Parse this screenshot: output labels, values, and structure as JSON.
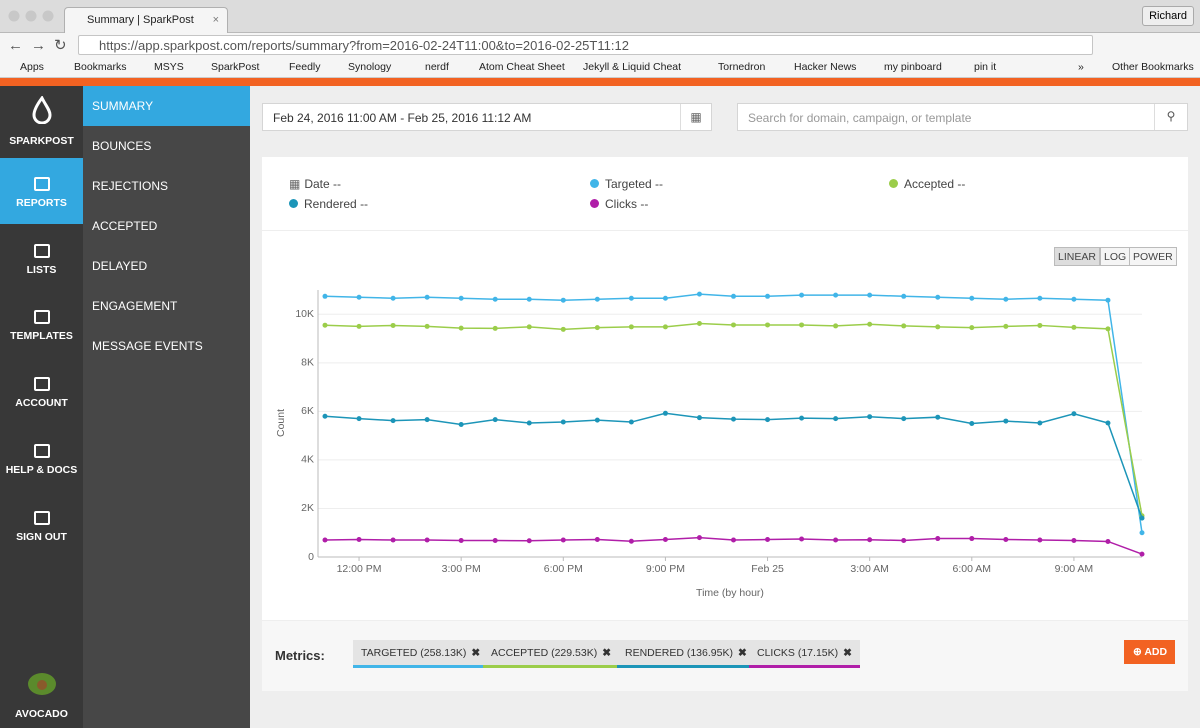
{
  "browser": {
    "tab_title": "Summary | SparkPost",
    "user": "Richard",
    "url": "https://app.sparkpost.com/reports/summary?from=2016-02-24T11:00&to=2016-02-25T11:12",
    "bookmarks": [
      "Apps",
      "Bookmarks",
      "MSYS",
      "SparkPost",
      "Feedly",
      "Synology",
      "nerdf",
      "Atom Cheat Sheet",
      "Jekyll & Liquid Cheat",
      "Tornedron",
      "Hacker News",
      "my pinboard",
      "pin it"
    ],
    "more": "»",
    "other_bookmarks": "Other Bookmarks"
  },
  "sidebar": {
    "brand": "SPARKPOST",
    "nav": [
      "REPORTS",
      "LISTS",
      "TEMPLATES",
      "ACCOUNT",
      "HELP & DOCS",
      "SIGN OUT"
    ],
    "footer": "AVOCADO"
  },
  "submenu": [
    "SUMMARY",
    "BOUNCES",
    "REJECTIONS",
    "ACCEPTED",
    "DELAYED",
    "ENGAGEMENT",
    "MESSAGE EVENTS"
  ],
  "filters": {
    "date_range": "Feb 24, 2016 11:00 AM - Feb 25, 2016 11:12 AM",
    "search_placeholder": "Search for domain, campaign, or template"
  },
  "readout": {
    "date_label": "Date",
    "empty": "--"
  },
  "scale_buttons": [
    "LINEAR",
    "LOG",
    "POWER"
  ],
  "metrics": {
    "label": "Metrics:",
    "chips": [
      "TARGETED (258.13K)",
      "ACCEPTED (229.53K)",
      "RENDERED (136.95K)",
      "CLICKS (17.15K)"
    ],
    "add": "ADD"
  },
  "chart_data": {
    "type": "line",
    "y_label": "Count",
    "x_label": "Time (by hour)",
    "categories": [
      null,
      "12:00 PM",
      null,
      null,
      "3:00 PM",
      null,
      null,
      "6:00 PM",
      null,
      null,
      "9:00 PM",
      null,
      null,
      "Feb 25",
      null,
      null,
      "3:00 AM",
      null,
      null,
      "6:00 AM",
      null,
      null,
      "9:00 AM",
      null,
      null
    ],
    "ylim": [
      0,
      11000
    ],
    "yticks": [
      0,
      {
        "value": 2000,
        "label": "2K"
      },
      {
        "value": 4000,
        "label": "4K"
      },
      {
        "value": 6000,
        "label": "6K"
      },
      {
        "value": 8000,
        "label": "8K"
      },
      {
        "value": 10000,
        "label": "10K"
      }
    ],
    "grid": true,
    "series": [
      {
        "name": "Targeted",
        "color": "#41b5e8",
        "values": [
          10740,
          10700,
          10660,
          10700,
          10660,
          10620,
          10620,
          10580,
          10620,
          10660,
          10660,
          10830,
          10740,
          10740,
          10790,
          10790,
          10790,
          10740,
          10700,
          10660,
          10620,
          10660,
          10620,
          10580,
          1000
        ]
      },
      {
        "name": "Accepted",
        "color": "#9bcd4a",
        "values": [
          9550,
          9500,
          9540,
          9500,
          9430,
          9420,
          9480,
          9380,
          9450,
          9480,
          9480,
          9620,
          9560,
          9560,
          9560,
          9520,
          9590,
          9520,
          9480,
          9450,
          9500,
          9540,
          9460,
          9400,
          1700
        ]
      },
      {
        "name": "Rendered",
        "color": "#1c95b8",
        "values": [
          5800,
          5700,
          5620,
          5660,
          5460,
          5660,
          5520,
          5560,
          5640,
          5560,
          5920,
          5740,
          5680,
          5660,
          5720,
          5700,
          5780,
          5700,
          5760,
          5500,
          5600,
          5520,
          5900,
          5520,
          1600
        ]
      },
      {
        "name": "Clicks",
        "color": "#b01ea8",
        "values": [
          700,
          720,
          700,
          700,
          680,
          680,
          670,
          700,
          720,
          650,
          720,
          800,
          700,
          720,
          740,
          700,
          710,
          680,
          760,
          760,
          720,
          700,
          680,
          640,
          120
        ]
      }
    ]
  }
}
